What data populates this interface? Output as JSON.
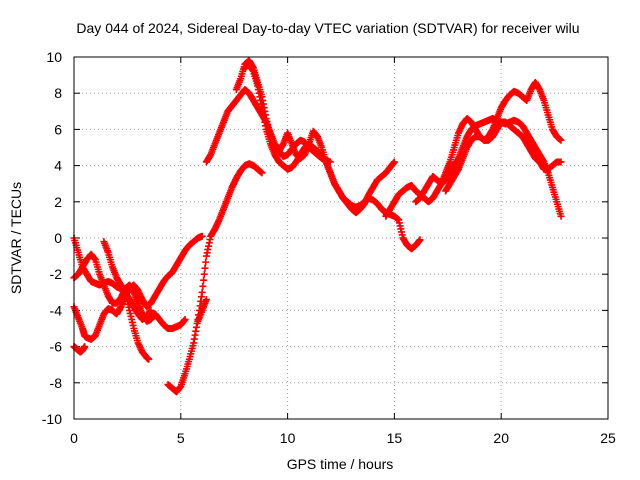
{
  "chart_data": {
    "type": "scatter",
    "title": "Day 044 of 2024, Sidereal Day-to-day VTEC variation (SDTVAR) for receiver wilu",
    "xlabel": "GPS time / hours",
    "ylabel": "SDTVAR / TECUs",
    "xlim": [
      0,
      25
    ],
    "ylim": [
      -10,
      10
    ],
    "x_ticks": [
      0,
      5,
      10,
      15,
      20,
      25
    ],
    "y_ticks": [
      -10,
      -8,
      -6,
      -4,
      -2,
      0,
      2,
      4,
      6,
      8,
      10
    ],
    "x_tick_labels": [
      "0",
      "5",
      "10",
      "15",
      "20",
      "25"
    ],
    "y_tick_labels": [
      "-10",
      "-8",
      "-6",
      "-4",
      "-2",
      "0",
      "2",
      "4",
      "6",
      "8",
      "10"
    ],
    "grid": true,
    "marker": "+",
    "color": "#ff0000",
    "series": [
      {
        "x": [
          0.0,
          0.2,
          0.4,
          0.6,
          0.8,
          1.0,
          1.2,
          1.4,
          1.6,
          1.8,
          2.0,
          2.2,
          2.4,
          2.6,
          2.8,
          3.0,
          3.2,
          3.4,
          3.5
        ],
        "values": [
          0.0,
          -0.8,
          -1.6,
          -2.0,
          -2.4,
          -2.5,
          -2.6,
          -2.5,
          -2.4,
          -2.5,
          -2.7,
          -2.8,
          -3.0,
          -4.0,
          -5.0,
          -5.8,
          -6.3,
          -6.6,
          -6.7
        ]
      },
      {
        "x": [
          0.0,
          0.2,
          0.4,
          0.6,
          0.8,
          1.0,
          1.2,
          1.4,
          1.6,
          1.8,
          2.0,
          2.2,
          2.4,
          2.6,
          2.8,
          3.0,
          3.2,
          3.4,
          3.6,
          3.8,
          4.0,
          4.2,
          4.4,
          4.6,
          4.8,
          5.0,
          5.2
        ],
        "values": [
          -2.2,
          -2.0,
          -1.6,
          -1.2,
          -0.9,
          -1.2,
          -2.0,
          -2.6,
          -3.2,
          -3.6,
          -3.6,
          -3.3,
          -2.8,
          -2.6,
          -3.0,
          -3.6,
          -4.2,
          -4.6,
          -4.5,
          -4.2,
          -4.5,
          -4.8,
          -5.0,
          -5.0,
          -4.9,
          -4.8,
          -4.5
        ]
      },
      {
        "x": [
          0.0,
          0.2,
          0.4,
          0.5,
          0.6,
          0.8,
          1.0,
          1.2,
          1.4,
          1.6,
          1.8,
          2.0,
          2.2,
          2.4,
          2.6,
          2.8,
          3.0,
          3.2,
          3.4,
          3.6,
          3.8,
          4.0,
          4.2,
          4.4,
          4.6,
          4.8,
          5.0,
          5.2,
          5.4,
          5.6,
          5.8,
          6.0
        ],
        "values": [
          -3.8,
          -4.4,
          -5.0,
          -5.4,
          -5.5,
          -5.6,
          -5.4,
          -4.8,
          -4.2,
          -3.9,
          -4.0,
          -4.2,
          -3.8,
          -3.2,
          -2.8,
          -2.6,
          -2.9,
          -3.4,
          -3.8,
          -3.6,
          -3.2,
          -2.8,
          -2.4,
          -2.1,
          -1.9,
          -1.5,
          -1.1,
          -0.7,
          -0.4,
          -0.2,
          0.0,
          0.1
        ]
      },
      {
        "x": [
          0.0,
          0.1,
          0.2,
          0.3,
          0.4,
          0.5
        ],
        "values": [
          -6.0,
          -6.1,
          -6.2,
          -6.3,
          -6.2,
          -6.0
        ]
      },
      {
        "x": [
          1.4,
          1.6,
          1.8,
          2.0,
          2.2,
          2.4,
          2.6,
          2.8,
          3.0,
          3.2,
          3.4,
          3.6
        ],
        "values": [
          -0.2,
          -0.8,
          -1.6,
          -2.2,
          -2.6,
          -3.0,
          -3.4,
          -3.8,
          -4.2,
          -4.5,
          -4.3,
          -4.0
        ]
      },
      {
        "x": [
          4.4,
          4.6,
          4.8,
          5.0,
          5.2,
          5.4,
          5.6,
          5.8,
          6.0,
          6.2,
          6.4,
          6.6,
          6.8,
          7.0,
          7.2,
          7.4,
          7.6,
          7.8,
          8.0,
          8.2,
          8.4,
          8.6,
          8.8
        ],
        "values": [
          -8.1,
          -8.3,
          -8.5,
          -8.2,
          -7.5,
          -6.7,
          -5.8,
          -4.5,
          -3.0,
          -1.0,
          0.1,
          0.5,
          1.0,
          1.6,
          2.2,
          2.8,
          3.3,
          3.7,
          4.0,
          4.1,
          4.0,
          3.8,
          3.6
        ]
      },
      {
        "x": [
          5.8,
          6.0,
          6.2
        ],
        "values": [
          -4.6,
          -4.0,
          -3.4
        ]
      },
      {
        "x": [
          6.2,
          6.4,
          6.6,
          6.8,
          7.0,
          7.2,
          7.4,
          7.6,
          7.8,
          8.0,
          8.2,
          8.4,
          8.6,
          8.8,
          9.0,
          9.2,
          9.4,
          9.6,
          9.8,
          10.0,
          10.2,
          10.4,
          10.6,
          10.8,
          11.0,
          11.2,
          11.4,
          11.6,
          11.8,
          12.0
        ],
        "values": [
          4.2,
          4.6,
          5.2,
          5.8,
          6.4,
          7.0,
          7.3,
          7.6,
          7.9,
          8.2,
          8.0,
          7.6,
          7.2,
          6.8,
          6.4,
          5.8,
          5.2,
          4.8,
          4.5,
          4.6,
          4.9,
          5.2,
          5.4,
          5.3,
          5.0,
          4.8,
          4.6,
          4.4,
          4.3,
          4.2
        ]
      },
      {
        "x": [
          7.6,
          7.8,
          8.0,
          8.2,
          8.4,
          8.6,
          8.8,
          9.0,
          9.2,
          9.4,
          9.6,
          9.8,
          10.0,
          10.2,
          10.4,
          10.6,
          10.8,
          11.0,
          11.2,
          11.4,
          11.6,
          11.8,
          12.0,
          12.2,
          12.4,
          12.6,
          12.8,
          13.0,
          13.2,
          13.4,
          13.6,
          13.8,
          14.0,
          14.2,
          14.4,
          14.6,
          14.8,
          15.0
        ],
        "values": [
          8.2,
          8.8,
          9.6,
          9.8,
          9.4,
          8.6,
          7.8,
          6.6,
          5.6,
          5.0,
          4.8,
          5.2,
          5.8,
          5.2,
          4.6,
          4.4,
          4.6,
          5.2,
          5.9,
          5.6,
          5.0,
          4.2,
          3.6,
          3.0,
          2.6,
          2.2,
          1.9,
          1.6,
          1.4,
          1.6,
          1.9,
          2.4,
          2.8,
          3.2,
          3.4,
          3.6,
          3.9,
          4.2
        ]
      },
      {
        "x": [
          8.0,
          8.2,
          8.4,
          8.6,
          8.8,
          9.0,
          9.2,
          9.4,
          9.6,
          9.8,
          10.0,
          10.2,
          10.4,
          10.6,
          10.8,
          11.0,
          11.2,
          11.4,
          11.6,
          11.8,
          12.0,
          12.2,
          12.4,
          12.6,
          12.8,
          13.0,
          13.2,
          13.4,
          13.6,
          13.8,
          14.0,
          14.2,
          14.4,
          14.6,
          14.8,
          15.0,
          15.2,
          15.4,
          15.6,
          15.8,
          16.0,
          16.2
        ],
        "values": [
          9.4,
          9.6,
          9.2,
          8.4,
          7.2,
          6.0,
          5.2,
          4.6,
          4.2,
          4.0,
          3.8,
          3.9,
          4.2,
          4.6,
          5.0,
          5.2,
          5.0,
          4.8,
          4.5,
          4.2,
          3.6,
          3.0,
          2.6,
          2.2,
          2.0,
          1.8,
          1.7,
          1.8,
          2.0,
          2.2,
          2.1,
          1.9,
          1.6,
          1.4,
          1.3,
          1.2,
          1.0,
          0.0,
          -0.4,
          -0.6,
          -0.4,
          -0.1
        ]
      },
      {
        "x": [
          14.6,
          14.8,
          15.0,
          15.2,
          15.4,
          15.6,
          15.8,
          16.0,
          16.2,
          16.4,
          16.6,
          16.8,
          17.0,
          17.2,
          17.4,
          17.6,
          17.8,
          18.0,
          18.2,
          18.4,
          18.6,
          18.8,
          19.0,
          19.2,
          19.4,
          19.6,
          19.8,
          20.0,
          20.2,
          20.4,
          20.6,
          20.8,
          21.0,
          21.2,
          21.4,
          21.6,
          21.8,
          22.0,
          22.2,
          22.4,
          22.6,
          22.8
        ],
        "values": [
          1.2,
          1.6,
          2.0,
          2.4,
          2.6,
          2.8,
          2.9,
          2.6,
          2.4,
          2.2,
          2.0,
          2.2,
          2.6,
          3.0,
          3.2,
          3.6,
          4.0,
          4.4,
          5.0,
          5.6,
          6.0,
          6.2,
          6.3,
          6.4,
          6.5,
          6.6,
          6.5,
          6.4,
          6.3,
          6.4,
          6.5,
          6.4,
          6.2,
          5.8,
          5.4,
          5.0,
          4.6,
          4.2,
          3.6,
          2.8,
          2.0,
          1.2
        ]
      },
      {
        "x": [
          16.0,
          16.2,
          16.4,
          16.6,
          16.8,
          17.0,
          17.2,
          17.4,
          17.6,
          17.8,
          18.0,
          18.2,
          18.4,
          18.6,
          18.8,
          19.0,
          19.2,
          19.4,
          19.6,
          19.8,
          20.0,
          20.2,
          20.4,
          20.6,
          20.8,
          21.0,
          21.2,
          21.4,
          21.6,
          21.8,
          22.0,
          22.2,
          22.4,
          22.6,
          22.8
        ],
        "values": [
          2.0,
          2.2,
          2.6,
          3.0,
          3.4,
          3.2,
          3.0,
          3.6,
          4.2,
          5.0,
          5.8,
          6.3,
          6.6,
          6.4,
          6.0,
          5.6,
          5.4,
          5.6,
          6.0,
          6.6,
          7.2,
          7.6,
          7.9,
          8.1,
          8.0,
          7.8,
          7.6,
          8.2,
          8.6,
          8.2,
          7.6,
          6.8,
          6.0,
          5.6,
          5.4
        ]
      },
      {
        "x": [
          17.4,
          17.6,
          17.8,
          18.0,
          18.2,
          18.4,
          18.6,
          18.8,
          19.0,
          19.2,
          19.4,
          19.6,
          19.8,
          20.0,
          20.2,
          20.4,
          20.6,
          20.8,
          21.0,
          21.2,
          21.4,
          21.6,
          21.8,
          22.0,
          22.2,
          22.4,
          22.6,
          22.8
        ],
        "values": [
          2.6,
          3.0,
          3.4,
          3.8,
          4.4,
          5.0,
          5.4,
          5.6,
          5.6,
          5.4,
          5.4,
          5.6,
          6.0,
          6.4,
          6.4,
          6.2,
          6.0,
          5.8,
          5.6,
          5.2,
          4.8,
          4.4,
          4.2,
          3.8,
          3.8,
          4.0,
          4.2,
          4.2
        ]
      }
    ]
  }
}
